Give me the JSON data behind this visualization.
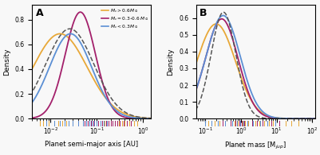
{
  "panel_A_label": "A",
  "panel_B_label": "B",
  "colors": [
    "#E8A838",
    "#A3206B",
    "#5B8FD4"
  ],
  "dashed_color": "#555555",
  "xlabel_A": "Planet semi-major axis [AU]",
  "xlabel_B": "Planet mass [M$_{jup}$]",
  "ylabel": "Density",
  "xlim_A": [
    0.004,
    1.5
  ],
  "xlim_B": [
    0.055,
    120
  ],
  "ylim_A": [
    0.0,
    0.92
  ],
  "ylim_B": [
    0.0,
    0.68
  ],
  "bg_color": "#f8f8f8",
  "A_orange_mu": -2.3,
  "A_orange_sigma": 1.35,
  "A_orange_scale": 0.685,
  "A_purple_mu": -2.55,
  "A_purple_sigma": 0.75,
  "A_purple_scale": 0.86,
  "A_blue_mu": -2.5,
  "A_blue_sigma": 1.05,
  "A_blue_scale": 0.685,
  "A_dashed_mu": -2.2,
  "A_dashed_sigma": 1.2,
  "A_dashed_scale": 0.725,
  "B_orange_mu": -0.05,
  "B_orange_sigma": 1.25,
  "B_orange_scale": 0.565,
  "B_purple_mu": -0.15,
  "B_purple_sigma": 1.05,
  "B_purple_scale": 0.595,
  "B_blue_mu": 0.05,
  "B_blue_sigma": 1.1,
  "B_blue_scale": 0.615,
  "B_dashed_mu": -0.5,
  "B_dashed_sigma": 0.8,
  "B_dashed_scale": 0.635,
  "rug_A_orange": [
    0.006,
    0.007,
    0.009,
    0.012,
    0.015,
    0.018,
    0.022,
    0.025,
    0.03,
    0.04,
    0.05,
    0.055,
    0.065,
    0.07,
    0.08,
    0.09,
    0.1,
    0.11,
    0.12,
    0.13,
    0.15,
    0.17,
    0.18,
    0.2,
    0.22,
    0.25,
    0.28,
    0.3,
    0.35,
    0.4,
    0.5,
    0.55,
    0.65,
    0.75
  ],
  "rug_A_purple": [
    0.04,
    0.055,
    0.065,
    0.075,
    0.085,
    0.09,
    0.1,
    0.11,
    0.12,
    0.13,
    0.14,
    0.16,
    0.18,
    0.2,
    0.22,
    0.25,
    0.28,
    0.32,
    0.38,
    0.45,
    0.55
  ],
  "rug_A_blue": [
    0.008,
    0.012,
    0.016,
    0.02,
    0.025,
    0.03,
    0.04,
    0.05,
    0.06,
    0.07,
    0.08,
    0.09,
    0.1,
    0.12,
    0.14,
    0.17
  ],
  "rug_B_orange": [
    0.12,
    0.18,
    0.25,
    0.35,
    0.5,
    0.65,
    0.8,
    0.95,
    1.1,
    1.3,
    1.6,
    2.0,
    2.5,
    3.2,
    4.5,
    6.0,
    8.0,
    12.0,
    18.0,
    25.0,
    40.0
  ],
  "rug_B_purple": [
    0.3,
    0.5,
    0.7,
    0.9,
    1.05,
    1.2,
    1.5,
    2.0,
    2.8,
    4.0,
    7.0,
    12.0
  ],
  "rug_B_blue": [
    0.1,
    0.15,
    0.22,
    0.35,
    0.55,
    0.75,
    0.95,
    1.15,
    1.5,
    2.2,
    3.5,
    5.5,
    9.0
  ]
}
